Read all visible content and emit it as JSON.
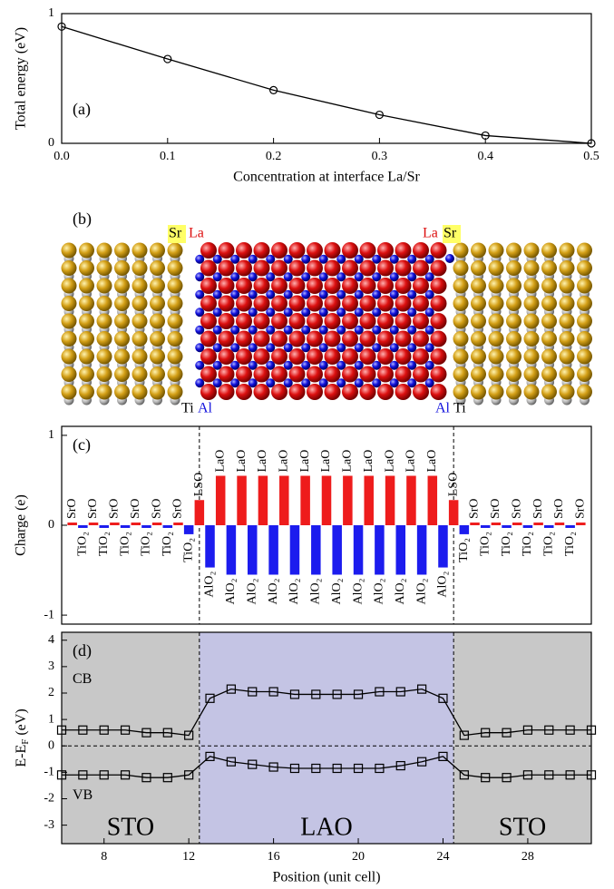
{
  "structure": {
    "annotation": "(b)",
    "top_labels": [
      "Sr",
      "La",
      "La",
      "Sr"
    ],
    "bottom_labels": [
      "Ti",
      "Al",
      "Al",
      "Ti"
    ]
  },
  "chart_data": [
    {
      "type": "line",
      "annotation": "(a)",
      "xlabel": "Concentration at interface La/Sr",
      "ylabel": "Total energy (eV)",
      "x": [
        0,
        0.1,
        0.2,
        0.3,
        0.4,
        0.5
      ],
      "values": [
        0.9,
        0.65,
        0.41,
        0.22,
        0.06,
        0.0
      ],
      "color": "#000000",
      "marker": "circle",
      "xlim": [
        0,
        0.5
      ],
      "ylim": [
        0,
        1
      ],
      "xticks": [
        {
          "value": 0,
          "label": "0.0"
        },
        0.1,
        0.2,
        0.3,
        0.4,
        0.5
      ],
      "yticks": [
        0,
        1
      ]
    },
    {
      "type": "bar",
      "annotation": "(c)",
      "ylabel": "Charge (e)",
      "x": [
        6.5,
        7,
        7.5,
        8,
        8.5,
        9,
        9.5,
        10,
        10.5,
        11,
        11.5,
        12,
        12.5,
        13,
        13.5,
        14,
        14.5,
        15,
        15.5,
        16,
        16.5,
        17,
        17.5,
        18,
        18.5,
        19,
        19.5,
        20,
        20.5,
        21,
        21.5,
        22,
        22.5,
        23,
        23.5,
        24,
        24.5,
        25,
        25.5,
        26,
        26.5,
        27,
        27.5,
        28,
        28.5,
        29,
        29.5,
        30,
        30.5
      ],
      "values": [
        0.03,
        -0.03,
        0.03,
        -0.03,
        0.03,
        -0.03,
        0.03,
        -0.03,
        0.03,
        -0.03,
        0.03,
        -0.1,
        0.28,
        -0.47,
        0.55,
        -0.55,
        0.55,
        -0.55,
        0.55,
        -0.55,
        0.55,
        -0.55,
        0.55,
        -0.55,
        0.55,
        -0.55,
        0.55,
        -0.55,
        0.55,
        -0.55,
        0.55,
        -0.55,
        0.55,
        -0.55,
        0.55,
        -0.47,
        0.28,
        -0.1,
        0.03,
        -0.03,
        0.03,
        -0.03,
        0.03,
        -0.03,
        0.03,
        -0.03,
        0.03,
        -0.03,
        0.03
      ],
      "layer_labels": [
        "SrO",
        "TiO₂",
        "SrO",
        "TiO₂",
        "SrO",
        "TiO₂",
        "SrO",
        "TiO₂",
        "SrO",
        "TiO₂",
        "SrO",
        "TiO₂",
        "LSO",
        "AlO₂",
        "LaO",
        "AlO₂",
        "LaO",
        "AlO₂",
        "LaO",
        "AlO₂",
        "LaO",
        "AlO₂",
        "LaO",
        "AlO₂",
        "LaO",
        "AlO₂",
        "LaO",
        "AlO₂",
        "LaO",
        "AlO₂",
        "LaO",
        "AlO₂",
        "LaO",
        "AlO₂",
        "LaO",
        "AlO₂",
        "LSO",
        "TiO₂",
        "SrO",
        "TiO₂",
        "SrO",
        "TiO₂",
        "SrO",
        "TiO₂",
        "SrO",
        "TiO₂",
        "SrO",
        "TiO₂",
        "SrO"
      ],
      "positive_color": "#ee1c1c",
      "negative_color": "#1c1cee",
      "xlim": [
        6,
        31
      ],
      "ylim": [
        -1.1,
        1.1
      ],
      "yticks": [
        -1,
        0,
        1
      ],
      "dividers": [
        12.5,
        24.5
      ]
    },
    {
      "type": "line",
      "annotation": "(d)",
      "xlabel": "Position (unit cell)",
      "ylabel": {
        "main": "E-E",
        "sub": "F",
        "unit": " (eV)"
      },
      "x": [
        6,
        7,
        8,
        9,
        10,
        11,
        12,
        13,
        14,
        15,
        16,
        17,
        18,
        19,
        20,
        21,
        22,
        23,
        24,
        25,
        26,
        27,
        28,
        29,
        30,
        31
      ],
      "series": [
        {
          "name": "CB",
          "color": "#000000",
          "values": [
            0.6,
            0.6,
            0.6,
            0.6,
            0.5,
            0.5,
            0.4,
            1.8,
            2.15,
            2.05,
            2.05,
            1.95,
            1.95,
            1.95,
            1.95,
            2.05,
            2.05,
            2.15,
            1.8,
            0.4,
            0.5,
            0.5,
            0.6,
            0.6,
            0.6,
            0.6
          ]
        },
        {
          "name": "VB",
          "color": "#000000",
          "values": [
            -1.1,
            -1.1,
            -1.1,
            -1.1,
            -1.2,
            -1.2,
            -1.1,
            -0.4,
            -0.6,
            -0.7,
            -0.8,
            -0.85,
            -0.85,
            -0.85,
            -0.85,
            -0.85,
            -0.75,
            -0.6,
            -0.4,
            -1.1,
            -1.2,
            -1.2,
            -1.1,
            -1.1,
            -1.1,
            -1.1
          ]
        }
      ],
      "marker": "square",
      "regions": [
        {
          "label": "STO",
          "from": 6,
          "to": 12.5,
          "color": "#c8c8c8"
        },
        {
          "label": "LAO",
          "from": 12.5,
          "to": 24.5,
          "color": "#c4c4e4"
        },
        {
          "label": "STO",
          "from": 24.5,
          "to": 31,
          "color": "#c8c8c8"
        }
      ],
      "hline": 0,
      "dividers": [
        12.5,
        24.5
      ],
      "xlim": [
        6,
        31
      ],
      "ylim": [
        -3.7,
        4.3
      ],
      "xticks": [
        8,
        12,
        16,
        20,
        24,
        28
      ],
      "yticks": [
        -3,
        -2,
        -1,
        0,
        1,
        2,
        3,
        4
      ]
    }
  ]
}
